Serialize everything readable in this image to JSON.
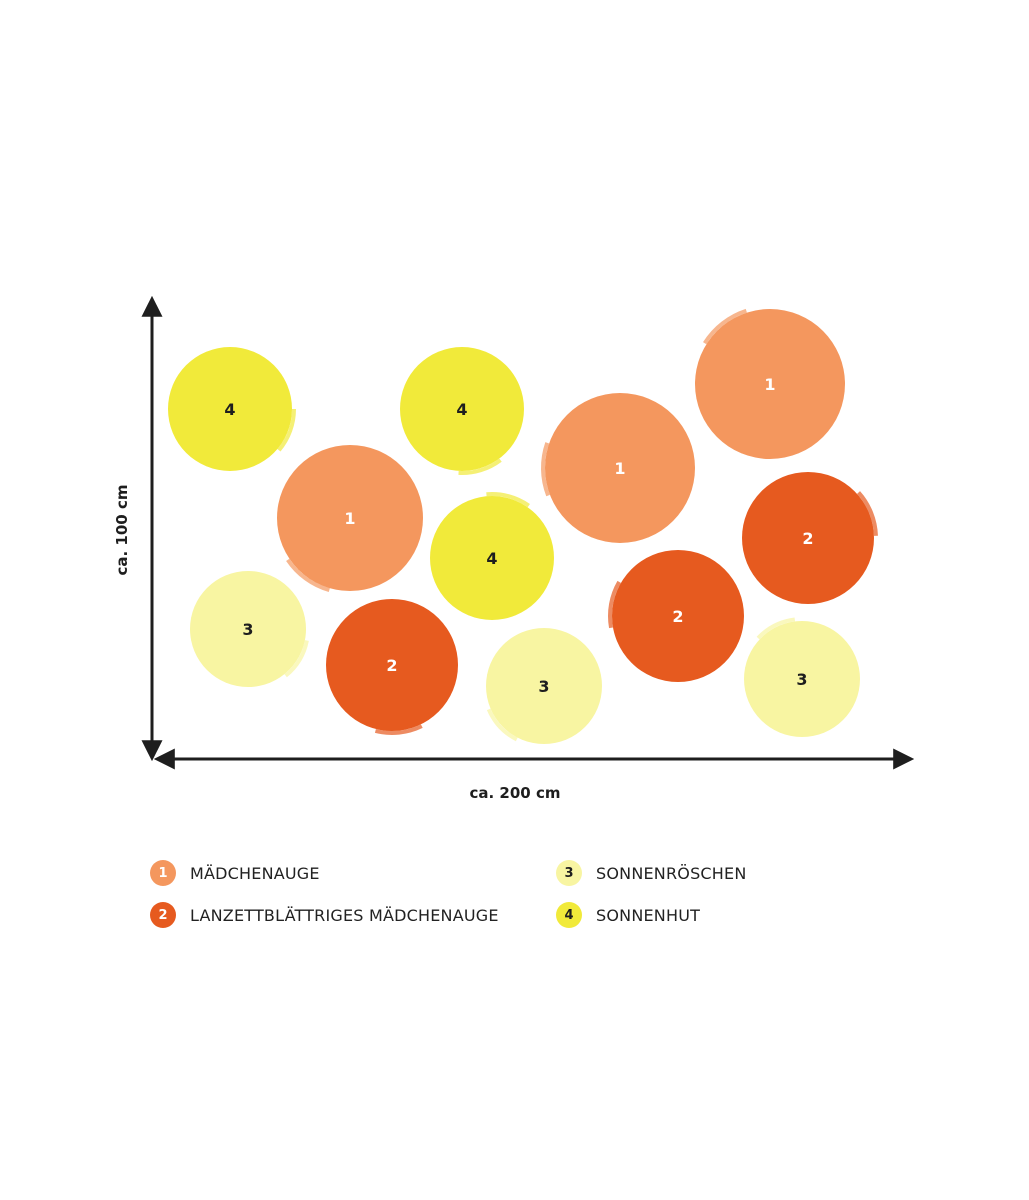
{
  "colors": {
    "p1": "#F4975E",
    "p2": "#E65A1F",
    "p3": "#F8F5A2",
    "p4": "#F1EA3A",
    "text_light": "#ffffff",
    "text_dark": "#1e1e1e",
    "axis": "#1e1e1e"
  },
  "dimensions": {
    "height_label": "ca. 100 cm",
    "width_label": "ca. 200 cm"
  },
  "plants": [
    {
      "type": 4,
      "label": "4"
    },
    {
      "type": 4,
      "label": "4"
    },
    {
      "type": 1,
      "label": "1"
    },
    {
      "type": 1,
      "label": "1"
    },
    {
      "type": 1,
      "label": "1"
    },
    {
      "type": 4,
      "label": "4"
    },
    {
      "type": 2,
      "label": "2"
    },
    {
      "type": 3,
      "label": "3"
    },
    {
      "type": 2,
      "label": "2"
    },
    {
      "type": 3,
      "label": "3"
    },
    {
      "type": 2,
      "label": "2"
    },
    {
      "type": 3,
      "label": "3"
    }
  ],
  "legend": [
    {
      "number": "1",
      "name": "MÄDCHENAUGE",
      "type": 1
    },
    {
      "number": "2",
      "name": "LANZETTBLÄTTRIGES MÄDCHENAUGE",
      "type": 2
    },
    {
      "number": "3",
      "name": "SONNENRÖSCHEN",
      "type": 3
    },
    {
      "number": "4",
      "name": "SONNENHUT",
      "type": 4
    }
  ]
}
